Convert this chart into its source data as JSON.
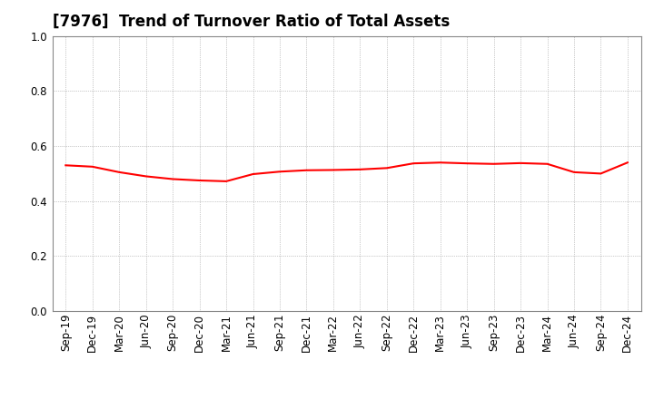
{
  "title": "[7976]  Trend of Turnover Ratio of Total Assets",
  "x_labels": [
    "Sep-19",
    "Dec-19",
    "Mar-20",
    "Jun-20",
    "Sep-20",
    "Dec-20",
    "Mar-21",
    "Jun-21",
    "Sep-21",
    "Dec-21",
    "Mar-22",
    "Jun-22",
    "Sep-22",
    "Dec-22",
    "Mar-23",
    "Jun-23",
    "Sep-23",
    "Dec-23",
    "Mar-24",
    "Jun-24",
    "Sep-24",
    "Dec-24"
  ],
  "y_values": [
    0.53,
    0.525,
    0.505,
    0.49,
    0.48,
    0.475,
    0.472,
    0.498,
    0.507,
    0.512,
    0.513,
    0.515,
    0.52,
    0.537,
    0.54,
    0.537,
    0.535,
    0.538,
    0.535,
    0.505,
    0.5,
    0.54
  ],
  "line_color": "#FF0000",
  "line_width": 1.5,
  "ylim": [
    0.0,
    1.0
  ],
  "yticks": [
    0.0,
    0.2,
    0.4,
    0.6,
    0.8,
    1.0
  ],
  "background_color": "#ffffff",
  "grid_color": "#999999",
  "title_fontsize": 12,
  "tick_fontsize": 8.5
}
